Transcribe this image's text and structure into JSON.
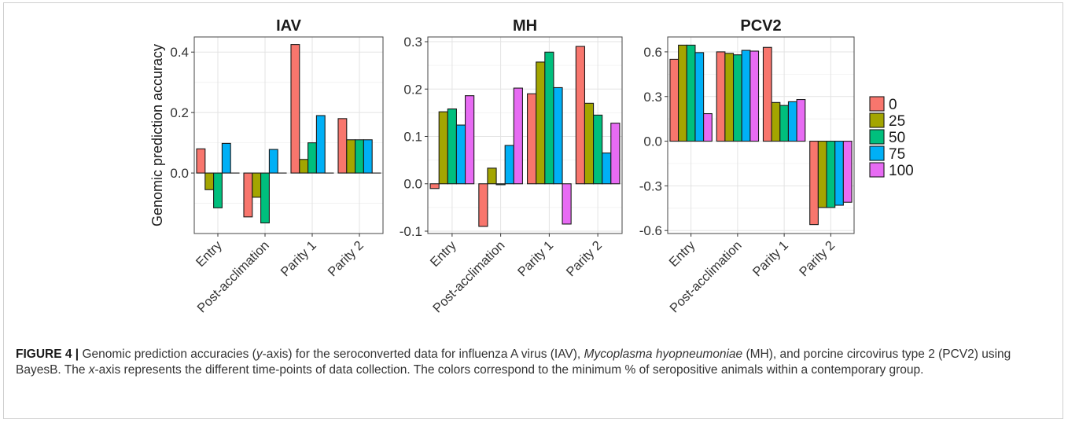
{
  "figure": {
    "ylabel": "Genomic prediction accuracy",
    "colors": {
      "0": "#F8766D",
      "25": "#A3A500",
      "50": "#00BF7D",
      "75": "#00B0F6",
      "100": "#E76BF3"
    },
    "legend": {
      "entries": [
        "0",
        "25",
        "50",
        "75",
        "100"
      ]
    }
  },
  "chart_data": [
    {
      "type": "bar",
      "title": "IAV",
      "ylabel": "Genomic prediction accuracy",
      "categories": [
        "Entry",
        "Post-acclimation",
        "Parity 1",
        "Parity 2"
      ],
      "ylim": [
        -0.2,
        0.45
      ],
      "yticks": [
        0.0,
        0.2,
        0.4
      ],
      "ytick_labels": [
        "0.0",
        "0.2",
        "0.4"
      ],
      "series": [
        {
          "name": "0",
          "values": [
            0.08,
            -0.145,
            0.425,
            0.18
          ]
        },
        {
          "name": "25",
          "values": [
            -0.055,
            -0.08,
            0.045,
            0.11
          ]
        },
        {
          "name": "50",
          "values": [
            -0.115,
            -0.165,
            0.1,
            0.11
          ]
        },
        {
          "name": "75",
          "values": [
            0.098,
            0.078,
            0.19,
            0.11
          ]
        },
        {
          "name": "100",
          "values": [
            0.0,
            0.0,
            0.0,
            0.0
          ]
        }
      ]
    },
    {
      "type": "bar",
      "title": "MH",
      "categories": [
        "Entry",
        "Post-acclimation",
        "Parity 1",
        "Parity 2"
      ],
      "ylim": [
        -0.105,
        0.31
      ],
      "yticks": [
        -0.1,
        0.0,
        0.1,
        0.2,
        0.3
      ],
      "ytick_labels": [
        "-0.1",
        "0.0",
        "0.1",
        "0.2",
        "0.3"
      ],
      "series": [
        {
          "name": "0",
          "values": [
            -0.01,
            -0.09,
            0.19,
            0.29
          ]
        },
        {
          "name": "25",
          "values": [
            0.152,
            0.033,
            0.257,
            0.17
          ]
        },
        {
          "name": "50",
          "values": [
            0.158,
            -0.002,
            0.278,
            0.145
          ]
        },
        {
          "name": "75",
          "values": [
            0.124,
            0.081,
            0.203,
            0.065
          ]
        },
        {
          "name": "100",
          "values": [
            0.186,
            0.202,
            -0.085,
            0.128
          ]
        }
      ]
    },
    {
      "type": "bar",
      "title": "PCV2",
      "categories": [
        "Entry",
        "Post-acclimation",
        "Parity 1",
        "Parity 2"
      ],
      "ylim": [
        -0.62,
        0.7
      ],
      "yticks": [
        -0.6,
        -0.3,
        0.0,
        0.3,
        0.6
      ],
      "ytick_labels": [
        "-0.6",
        "-0.3",
        "0.0",
        "0.3",
        "0.6"
      ],
      "series": [
        {
          "name": "0",
          "values": [
            0.55,
            0.6,
            0.63,
            -0.56
          ]
        },
        {
          "name": "25",
          "values": [
            0.645,
            0.59,
            0.26,
            -0.445
          ]
        },
        {
          "name": "50",
          "values": [
            0.645,
            0.58,
            0.24,
            -0.445
          ]
        },
        {
          "name": "75",
          "values": [
            0.595,
            0.61,
            0.265,
            -0.43
          ]
        },
        {
          "name": "100",
          "values": [
            0.185,
            0.605,
            0.28,
            -0.41
          ]
        }
      ]
    }
  ],
  "caption": {
    "label": "FIGURE 4 |",
    "t1": " Genomic prediction accuracies (",
    "t1i": "y",
    "t2": "-axis) for the seroconverted data for influenza A virus (IAV), ",
    "t2i": "Mycoplasma hyopneumoniae",
    "t3": " (MH), and porcine circovirus type 2 (PCV2) using BayesB. The ",
    "t3i": "x",
    "t4": "-axis represents the different time-points of data collection. The colors correspond to the minimum % of seropositive animals within a contemporary group."
  }
}
